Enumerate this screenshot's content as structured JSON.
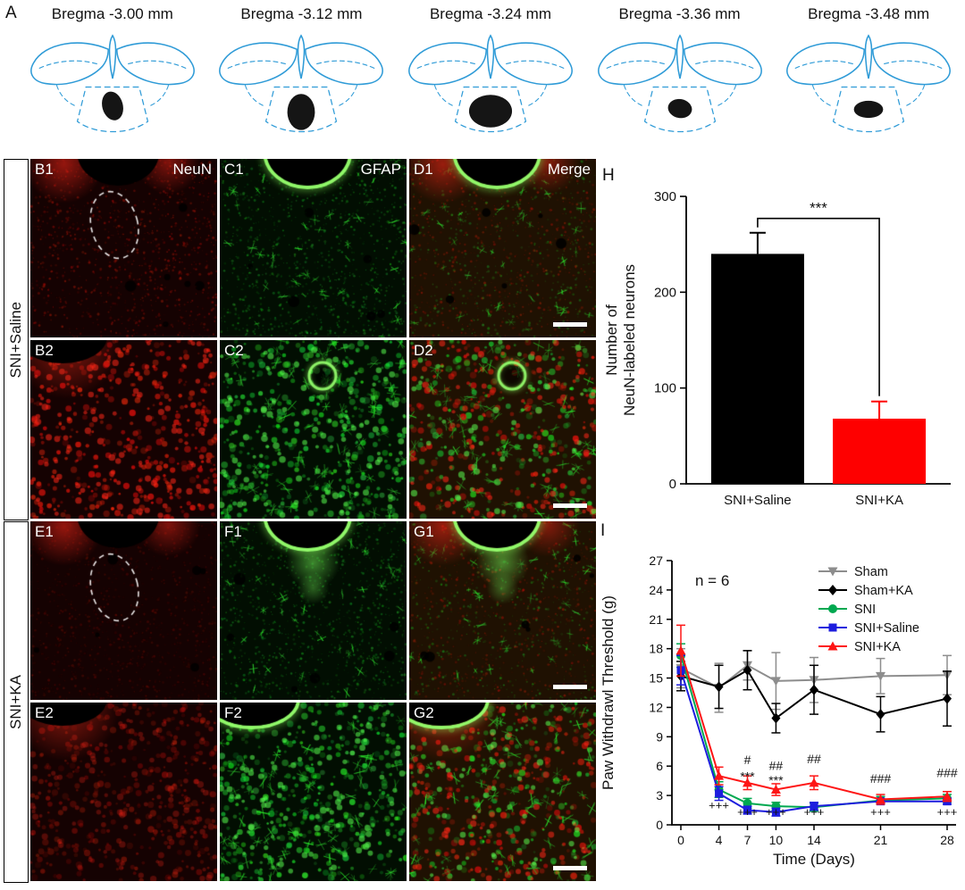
{
  "panels": {
    "a_label": "A",
    "h_label": "H",
    "i_label": "I"
  },
  "atlas": {
    "line_color": "#2f9bd7",
    "lesion_color": "#151515",
    "items": [
      {
        "title": "Bregma -3.00 mm"
      },
      {
        "title": "Bregma -3.12 mm"
      },
      {
        "title": "Bregma -3.24 mm"
      },
      {
        "title": "Bregma -3.36 mm"
      },
      {
        "title": "Bregma -3.48 mm"
      }
    ]
  },
  "micro": {
    "groups": [
      {
        "label": "SNI+Saline"
      },
      {
        "label": "SNI+KA"
      }
    ],
    "channel_colors": {
      "neun": "#ff2a1a",
      "gfap": "#2aff46"
    },
    "tiles": [
      {
        "corner": "B1",
        "tag": "NeuN",
        "channel": "red",
        "mag": "low",
        "dashed": true,
        "oval": "center",
        "rim": "none",
        "patches": "top",
        "scalebar": false
      },
      {
        "corner": "C1",
        "tag": "GFAP",
        "channel": "green",
        "mag": "low",
        "dashed": false,
        "oval": "center",
        "rim": "green",
        "patches": "none",
        "scalebar": false
      },
      {
        "corner": "D1",
        "tag": "Merge",
        "channel": "merge",
        "mag": "low",
        "dashed": false,
        "oval": "center",
        "rim": "green",
        "patches": "top",
        "scalebar": true
      },
      {
        "corner": "B2",
        "channel": "red",
        "mag": "high",
        "oval": "left",
        "rim": "none",
        "patches": "left",
        "scalebar": false
      },
      {
        "corner": "C2",
        "channel": "green",
        "mag": "high",
        "oval": "ring",
        "rim": "green",
        "patches": "none",
        "scalebar": false
      },
      {
        "corner": "D2",
        "channel": "merge",
        "mag": "high",
        "oval": "ring",
        "rim": "green",
        "patches": "none",
        "scalebar": true
      },
      {
        "corner": "E1",
        "channel": "red",
        "mag": "low",
        "dim": true,
        "dashed": true,
        "oval": "center",
        "rim": "none",
        "patches": "top",
        "scalebar": false
      },
      {
        "corner": "F1",
        "channel": "green",
        "mag": "low",
        "oval": "center",
        "rim": "green",
        "streak": true,
        "patches": "none",
        "scalebar": false
      },
      {
        "corner": "G1",
        "channel": "merge",
        "mag": "low",
        "oval": "center",
        "rim": "green",
        "streak": true,
        "patches": "top",
        "scalebar": true
      },
      {
        "corner": "E2",
        "channel": "red",
        "mag": "high",
        "dim": true,
        "oval": "left",
        "rim": "none",
        "patches": "left",
        "scalebar": false
      },
      {
        "corner": "F2",
        "channel": "green",
        "mag": "high",
        "oval": "left",
        "rim": "green",
        "patches": "none",
        "scalebar": false
      },
      {
        "corner": "G2",
        "channel": "merge",
        "mag": "high",
        "oval": "left",
        "rim": "green",
        "patches": "left",
        "scalebar": true
      }
    ]
  },
  "chart_data": [
    {
      "type": "bar",
      "panel": "H",
      "categories": [
        "SNI+Saline",
        "SNI+KA"
      ],
      "values": [
        240,
        68
      ],
      "errors": [
        22,
        18
      ],
      "bar_colors": [
        "#000000",
        "#fe0000"
      ],
      "ylabel": "Number of\nNeuN-labeled neurons",
      "ylim": [
        0,
        300
      ],
      "yticks": [
        0,
        100,
        200,
        300
      ],
      "significance": {
        "text": "***",
        "between": [
          0,
          1
        ]
      }
    },
    {
      "type": "line",
      "panel": "I",
      "note": "n = 6",
      "xlabel": "Time (Days)",
      "ylabel": "Paw Withdrawl Threshold (g)",
      "x": [
        0,
        4,
        7,
        10,
        14,
        21,
        28
      ],
      "ylim": [
        0,
        27
      ],
      "yticks": [
        0,
        3,
        6,
        9,
        12,
        15,
        18,
        21,
        24,
        27
      ],
      "legend_position": "top-right",
      "series": [
        {
          "name": "Sham",
          "color": "#8d8d8d",
          "marker": "triangle-down",
          "values": [
            16.0,
            14.0,
            16.3,
            14.7,
            14.8,
            15.2,
            15.3
          ],
          "errors": [
            2.0,
            2.5,
            1.5,
            2.9,
            2.3,
            1.8,
            2.0
          ]
        },
        {
          "name": "Sham+KA",
          "color": "#000000",
          "marker": "diamond",
          "values": [
            15.2,
            14.1,
            15.8,
            10.9,
            13.8,
            11.3,
            12.9
          ],
          "errors": [
            1.5,
            2.2,
            2.0,
            1.5,
            2.5,
            1.8,
            2.8
          ]
        },
        {
          "name": "SNI",
          "color": "#00a850",
          "marker": "circle",
          "values": [
            17.3,
            3.6,
            2.2,
            1.9,
            1.8,
            2.5,
            2.7
          ],
          "errors": [
            1.2,
            0.8,
            0.5,
            0.4,
            0.4,
            0.4,
            0.4
          ]
        },
        {
          "name": "SNI+Saline",
          "color": "#1d1dde",
          "marker": "square",
          "values": [
            15.8,
            3.2,
            1.5,
            1.3,
            1.9,
            2.4,
            2.4
          ],
          "errors": [
            1.5,
            0.7,
            0.4,
            0.4,
            0.4,
            0.3,
            0.3
          ]
        },
        {
          "name": "SNI+KA",
          "color": "#fe1515",
          "marker": "triangle-up",
          "values": [
            17.8,
            5.0,
            4.3,
            3.6,
            4.3,
            2.6,
            2.9
          ],
          "errors": [
            2.6,
            0.9,
            0.7,
            0.6,
            0.7,
            0.5,
            0.5
          ]
        }
      ],
      "annotations": [
        {
          "x": 4,
          "y": 1.6,
          "text": "+++"
        },
        {
          "x": 7,
          "y": 6.2,
          "text": "#"
        },
        {
          "x": 7,
          "y": 4.5,
          "text": "***"
        },
        {
          "x": 7,
          "y": 0.9,
          "text": "+++"
        },
        {
          "x": 10,
          "y": 5.6,
          "text": "##"
        },
        {
          "x": 10,
          "y": 4.1,
          "text": "***"
        },
        {
          "x": 10,
          "y": 0.9,
          "text": "+++"
        },
        {
          "x": 14,
          "y": 6.3,
          "text": "##"
        },
        {
          "x": 14,
          "y": 0.9,
          "text": "+++"
        },
        {
          "x": 21,
          "y": 4.3,
          "text": "###"
        },
        {
          "x": 21,
          "y": 0.9,
          "text": "+++"
        },
        {
          "x": 28,
          "y": 4.9,
          "text": "###"
        },
        {
          "x": 28,
          "y": 0.9,
          "text": "+++"
        }
      ]
    }
  ]
}
